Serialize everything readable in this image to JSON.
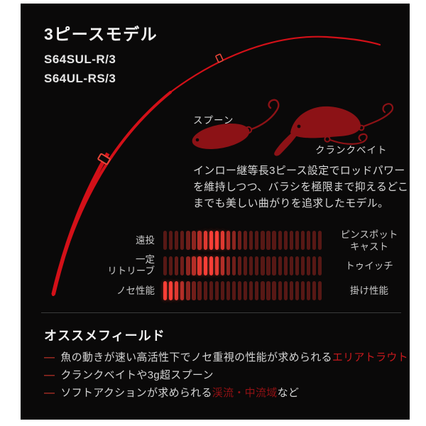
{
  "panel": {
    "bg": "#0a0909",
    "page_bg": "#ffffff"
  },
  "header": {
    "title": "3ピースモデル",
    "model_1": "S64SUL-R/3",
    "model_2": "S64UL-RS/3"
  },
  "rod": {
    "color": "#d31018",
    "joint_color": "#e8473a"
  },
  "lures": {
    "color": "#8c1216",
    "spoon_label": "スプーン",
    "crank_label": "クランクベイト"
  },
  "description": {
    "text": "インロー継等長3ピース設定でロッドパワー\nを維持しつつ、バラシを極限まで抑えるどこ\nまでも美しい曲がりを追求したモデル。"
  },
  "chart_data": {
    "type": "bar",
    "subtype": "segmented-performance-gauge",
    "segments_per_row": 28,
    "bright_color": "#fa3f37",
    "dim_color": "#571815",
    "note": "each row is a left-vs-right trait scale; bright segments mark where the rod character sits",
    "rows": [
      {
        "left_label": "遠投",
        "right_label": "ピンスポット\nキャスト",
        "peak_segment": 9,
        "intensities": [
          0.2,
          0.2,
          0.21,
          0.25,
          0.32,
          0.45,
          0.64,
          0.85,
          0.98,
          0.98,
          0.85,
          0.64,
          0.45,
          0.32,
          0.25,
          0.21,
          0.2,
          0.2,
          0.2,
          0.2,
          0.2,
          0.2,
          0.2,
          0.2,
          0.2,
          0.2,
          0.2,
          0.2
        ]
      },
      {
        "left_label": "一定\nリトリーブ",
        "right_label": "トゥイッチ",
        "peak_segment": 8,
        "intensities": [
          0.2,
          0.21,
          0.25,
          0.32,
          0.45,
          0.64,
          0.85,
          0.98,
          0.98,
          0.85,
          0.64,
          0.45,
          0.32,
          0.25,
          0.21,
          0.2,
          0.2,
          0.2,
          0.2,
          0.2,
          0.2,
          0.2,
          0.2,
          0.2,
          0.2,
          0.2,
          0.2,
          0.2
        ]
      },
      {
        "left_label": "ノセ性能",
        "right_label": "掛け性能",
        "peak_segment": 1,
        "intensities": [
          0.98,
          0.98,
          0.85,
          0.64,
          0.45,
          0.32,
          0.25,
          0.21,
          0.2,
          0.2,
          0.2,
          0.2,
          0.2,
          0.2,
          0.2,
          0.2,
          0.2,
          0.2,
          0.2,
          0.2,
          0.2,
          0.2,
          0.2,
          0.2,
          0.2,
          0.2,
          0.2,
          0.2
        ]
      }
    ]
  },
  "recommend": {
    "title": "オススメフィールド",
    "bullet_glyph": "—",
    "bullet_color": "#9c2a22",
    "items": [
      {
        "segments": [
          {
            "text": "魚の動きが速い高活性下でノセ重視の性能が求められる",
            "color": null
          },
          {
            "text": "エリアトラウト",
            "color": "#c8191d"
          }
        ]
      },
      {
        "segments": [
          {
            "text": "クランクベイトや3g超スプーン",
            "color": null
          }
        ]
      },
      {
        "segments": [
          {
            "text": "ソフトアクションが求められる",
            "color": null
          },
          {
            "text": "渓流・中流域",
            "color": "#941114"
          },
          {
            "text": "など",
            "color": null
          }
        ]
      }
    ]
  }
}
